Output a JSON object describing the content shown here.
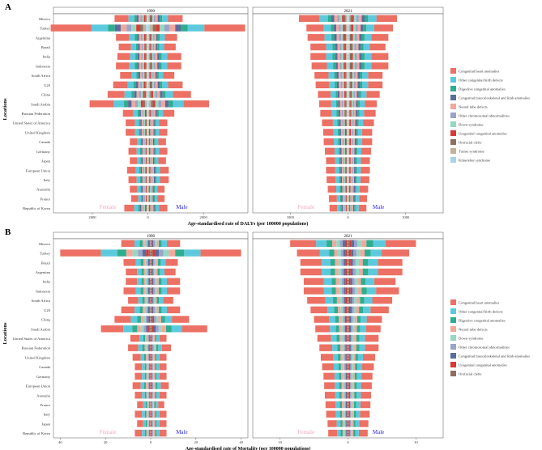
{
  "figure": {
    "panel_labels": [
      "A",
      "B"
    ],
    "y_axis_title": "Locations"
  },
  "colors": {
    "Congenital heart anomalies": "#EC7063",
    "Other congenital birth defects": "#5DC9DD",
    "Digestive congenital anomalies": "#2EAE8F",
    "Congenital musculoskeletal and limb anomalies": "#5A6C9C",
    "Neural tube defects": "#F3A79B",
    "Other chromosomal abnormalities": "#9AA3C8",
    "Down syndrome": "#95D8C4",
    "Urogenital congenital anomalies": "#D83A34",
    "Orofacial clefts": "#8C6F5F",
    "Turner syndrome": "#C2B29A",
    "Klinefelter syndrome": "#A7D3E6"
  },
  "chart_data": [
    {
      "type": "bar",
      "orientation": "horizontal-butterfly",
      "panel": "A",
      "facets": [
        "1990",
        "2021"
      ],
      "xlabel": "Age-standardised rate of DALYs (per 100000 populations)",
      "ylabel": "Locations",
      "side_labels": {
        "left": "Female",
        "right": "Male"
      },
      "legend": {
        "position": "right",
        "entries": [
          "Congenital heart anomalies",
          "Other congenital birth defects",
          "Digestive congenital anomalies",
          "Congenital musculoskeletal and limb anomalies",
          "Neural tube defects",
          "Other chromosomal abnormalities",
          "Down syndrome",
          "Urogenital congenital anomalies",
          "Orofacial clefts",
          "Turner syndrome",
          "Klinefelter syndrome"
        ]
      },
      "series_order": [
        "Congenital heart anomalies",
        "Other congenital birth defects",
        "Digestive congenital anomalies",
        "Congenital musculoskeletal and limb anomalies",
        "Neural tube defects",
        "Other chromosomal abnormalities",
        "Down syndrome",
        "Urogenital congenital anomalies",
        "Orofacial clefts",
        "Turner syndrome",
        "Klinefelter syndrome"
      ],
      "categories": [
        "Mexico",
        "Turkey",
        "Argentina",
        "Brazil",
        "India",
        "Indonesia",
        "South Africa",
        "G20",
        "China",
        "Saudi Arabia",
        "Russian Federation",
        "United States of America",
        "United Kingdom",
        "Canada",
        "Germany",
        "Japan",
        "European Union",
        "Italy",
        "Australia",
        "France",
        "Republic of Korea"
      ],
      "x_ticks": {
        "1990": {
          "values": [
            -2000,
            0,
            2000
          ],
          "labels": [
            "2000",
            "0",
            "2000"
          ],
          "xlim": [
            -3400,
            3600
          ]
        },
        "2021": {
          "values": [
            -1000,
            0,
            1000
          ],
          "labels": [
            "1000",
            "0",
            "1000"
          ],
          "xlim": [
            -1650,
            1650
          ]
        }
      },
      "stack_shares": [
        0.42,
        0.17,
        0.07,
        0.06,
        0.06,
        0.05,
        0.05,
        0.04,
        0.03,
        0.03,
        0.02
      ],
      "totals": {
        "1990": {
          "female": [
            1200,
            3500,
            1150,
            1050,
            1100,
            1150,
            1000,
            1250,
            1450,
            2100,
            900,
            800,
            800,
            650,
            700,
            650,
            750,
            700,
            650,
            600,
            850
          ],
          "male": [
            1250,
            3500,
            1050,
            1000,
            1200,
            1200,
            950,
            1250,
            1550,
            2200,
            950,
            700,
            700,
            650,
            700,
            650,
            750,
            750,
            600,
            600,
            700
          ]
        },
        "2021": {
          "female": [
            850,
            720,
            700,
            650,
            650,
            630,
            580,
            560,
            520,
            500,
            480,
            450,
            430,
            420,
            400,
            380,
            380,
            370,
            350,
            330,
            320
          ],
          "male": [
            850,
            780,
            700,
            650,
            700,
            700,
            600,
            600,
            550,
            500,
            480,
            450,
            420,
            420,
            400,
            380,
            380,
            370,
            350,
            330,
            320
          ]
        }
      }
    },
    {
      "type": "bar",
      "orientation": "horizontal-butterfly",
      "panel": "B",
      "facets": [
        "1990",
        "2021"
      ],
      "xlabel": "Age-standardised rate of Mortality (per 100000 populations)",
      "ylabel": "Locations",
      "side_labels": {
        "left": "Female",
        "right": "Male"
      },
      "legend": {
        "position": "right",
        "entries": [
          "Congenital heart anomalies",
          "Other congenital birth defects",
          "Digestive congenital anomalies",
          "Neural tube defects",
          "Down syndrome",
          "Other chromosomal abnormalities",
          "Congenital musculoskeletal and limb anomalies",
          "Urogenital congenital anomalies",
          "Orofacial clefts"
        ]
      },
      "series_order": [
        "Congenital heart anomalies",
        "Other congenital birth defects",
        "Digestive congenital anomalies",
        "Neural tube defects",
        "Down syndrome",
        "Other chromosomal abnormalities",
        "Congenital musculoskeletal and limb anomalies",
        "Urogenital congenital anomalies",
        "Orofacial clefts"
      ],
      "categories": [
        "Mexico",
        "Turkey",
        "Brazil",
        "Argentina",
        "India",
        "Indonesia",
        "South Africa",
        "G20",
        "China",
        "Saudi Arabia",
        "United States of America",
        "Russian Federation",
        "United Kingdom",
        "Canada",
        "Germany",
        "European Union",
        "Australia",
        "France",
        "Italy",
        "Japan",
        "Republic of Korea"
      ],
      "x_ticks": {
        "1990": {
          "values": [
            -40,
            -20,
            0,
            20,
            40
          ],
          "labels": [
            "40",
            "20",
            "0",
            "20",
            "40"
          ],
          "xlim": [
            -43,
            43
          ]
        },
        "2021": {
          "values": [
            -10,
            0,
            10
          ],
          "labels": [
            "10",
            "0",
            "10"
          ],
          "xlim": [
            -14,
            14
          ]
        }
      },
      "stack_shares": [
        0.45,
        0.18,
        0.1,
        0.07,
        0.06,
        0.05,
        0.04,
        0.03,
        0.02
      ],
      "totals": {
        "1990": {
          "female": [
            13,
            40,
            12,
            11,
            11,
            12,
            10,
            13,
            16,
            22,
            9,
            10,
            8,
            7,
            7,
            8,
            7,
            6,
            7,
            6,
            7
          ],
          "male": [
            13,
            40,
            12,
            11,
            13,
            13,
            10,
            13,
            17,
            25,
            7,
            9,
            7,
            7,
            7,
            8,
            7,
            6,
            7,
            7,
            7
          ]
        },
        "2021": {
          "female": [
            8.5,
            7.5,
            7.0,
            7.0,
            6.5,
            6.5,
            6.0,
            5.5,
            5.0,
            4.8,
            4.5,
            4.2,
            4.0,
            3.8,
            3.6,
            3.5,
            3.4,
            3.3,
            3.2,
            3.0,
            2.9
          ],
          "male": [
            10.0,
            9.0,
            8.0,
            8.0,
            7.0,
            7.5,
            6.5,
            6.0,
            5.0,
            4.8,
            4.5,
            4.5,
            4.0,
            3.8,
            3.6,
            3.5,
            3.4,
            3.3,
            3.2,
            3.0,
            2.9
          ]
        }
      }
    }
  ]
}
